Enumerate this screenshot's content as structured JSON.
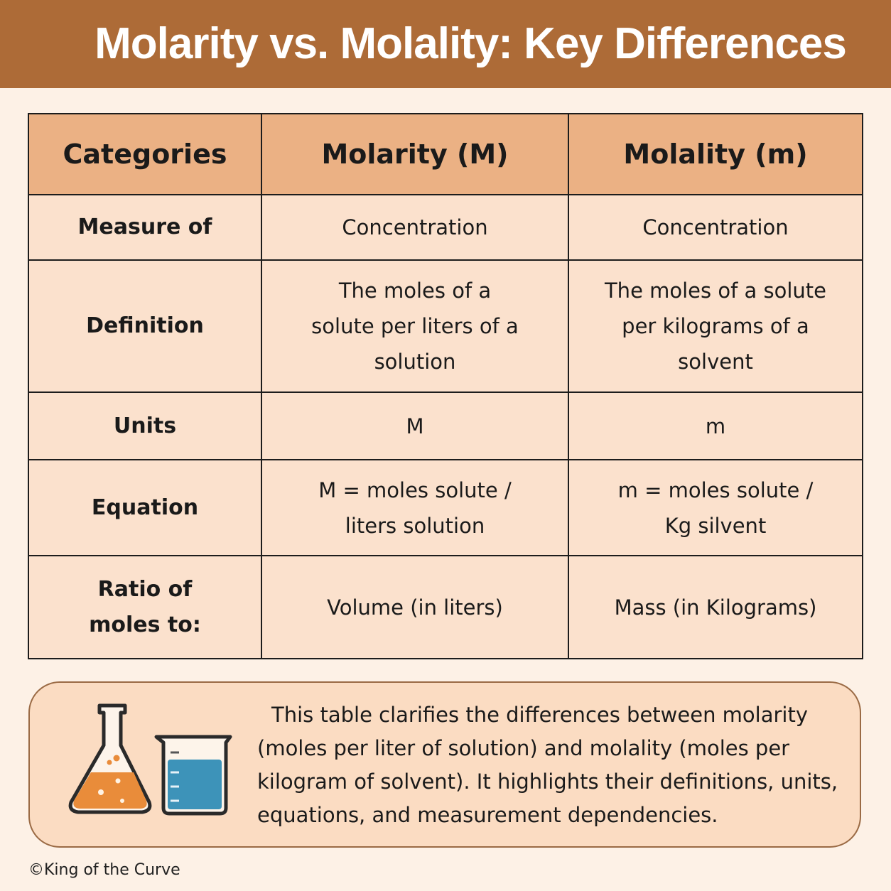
{
  "title": "Molarity vs. Molality: Key Differences",
  "table": {
    "headers": [
      "Categories",
      "Molarity (M)",
      "Molality (m)"
    ],
    "rows": [
      {
        "category": "Measure of",
        "molarity": "Concentration",
        "molality": "Concentration"
      },
      {
        "category": "Definition",
        "molarity": "The moles of a solute per liters of a solution",
        "molality": "The moles of a solute per kilograms of a solvent"
      },
      {
        "category": "Units",
        "molarity": "M",
        "molality": "m"
      },
      {
        "category": "Equation",
        "molarity": "M = moles solute / liters solution",
        "molality": "m = moles solute / Kg silvent"
      },
      {
        "category": "Ratio of moles to:",
        "molarity": "Volume (in liters)",
        "molality": "Mass (in Kilograms)"
      }
    ]
  },
  "summary": "This table clarifies the differences between molarity (moles per liter of solution) and molality (moles per kilogram of solvent). It highlights their definitions, units, equations, and measurement dependencies.",
  "icons": [
    "flask-icon",
    "beaker-icon"
  ],
  "colors": {
    "banner": "#ad6b37",
    "header_row": "#ebb184",
    "cell": "#fbe1cd",
    "background": "#fdf1e6",
    "flask_liquid": "#e98c3a",
    "beaker_liquid": "#3d93b9"
  },
  "copyright": "©King of the Curve"
}
